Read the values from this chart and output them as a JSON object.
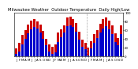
{
  "title": "Milwaukee Weather  Outdoor Temperature  Daily High/Low",
  "months": [
    "J",
    "F",
    "M",
    "A",
    "M",
    "J",
    "J",
    "A",
    "S",
    "O",
    "N",
    "D",
    "J",
    "F",
    "M",
    "A",
    "M",
    "J",
    "J",
    "A",
    "S",
    "O",
    "N",
    "D",
    "J",
    "F",
    "M",
    "A",
    "M",
    "J",
    "J",
    "A",
    "S",
    "O",
    "N",
    "D"
  ],
  "highs": [
    18,
    30,
    48,
    60,
    72,
    82,
    84,
    80,
    72,
    58,
    40,
    28,
    22,
    28,
    55,
    62,
    70,
    88,
    90,
    85,
    75,
    56,
    38,
    30,
    20,
    35,
    50,
    60,
    74,
    84,
    88,
    82,
    70,
    52,
    42,
    70
  ],
  "lows": [
    5,
    12,
    28,
    40,
    52,
    62,
    66,
    64,
    54,
    40,
    25,
    12,
    5,
    10,
    32,
    44,
    54,
    68,
    70,
    66,
    56,
    38,
    22,
    16,
    3,
    18,
    30,
    42,
    54,
    64,
    68,
    62,
    50,
    32,
    26,
    50
  ],
  "bar_high_color": "#cc0000",
  "bar_low_color": "#0000cc",
  "background_color": "#ffffff",
  "ylim": [
    0,
    100
  ],
  "title_fontsize": 3.8,
  "tick_fontsize": 2.8,
  "yticks": [
    0,
    20,
    40,
    60,
    80,
    100
  ],
  "ytick_labels": [
    "0",
    "20",
    "40",
    "60",
    "80",
    "100"
  ],
  "vline_pos": 23.5,
  "vline_color": "#aaaaaa",
  "n_bars": 36
}
